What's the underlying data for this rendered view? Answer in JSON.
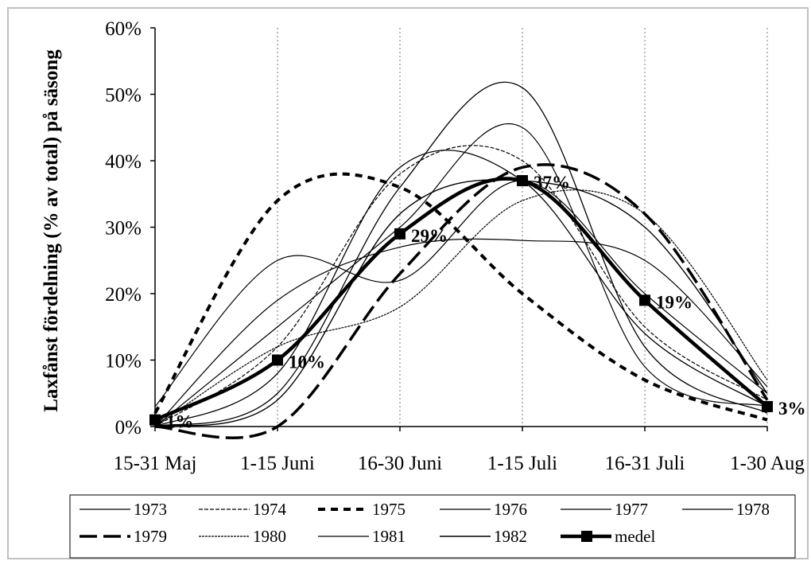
{
  "chart_data": {
    "type": "line",
    "title": "",
    "xlabel": "",
    "ylabel": "Laxfånst fördelning (% av total) på säsong",
    "categories": [
      "15-31 Maj",
      "1-15 Juni",
      "16-30 Juni",
      "1-15 Juli",
      "16-31 Juli",
      "1-30 Aug"
    ],
    "ylim": [
      0,
      60
    ],
    "yticks": [
      "0%",
      "10%",
      "20%",
      "30%",
      "40%",
      "50%",
      "60%"
    ],
    "grid": "vertical dotted",
    "legend": "bottom",
    "series": [
      {
        "name": "1973",
        "values": [
          3,
          25,
          22,
          37,
          20,
          5
        ]
      },
      {
        "name": "1974",
        "values": [
          0,
          12,
          38,
          40,
          15,
          4
        ]
      },
      {
        "name": "1975",
        "values": [
          2,
          34,
          36,
          20,
          7,
          1
        ]
      },
      {
        "name": "1976",
        "values": [
          0,
          5,
          36,
          51,
          12,
          2
        ]
      },
      {
        "name": "1977",
        "values": [
          0,
          15,
          30,
          45,
          9,
          3
        ]
      },
      {
        "name": "1978",
        "values": [
          0,
          19,
          27,
          28,
          25,
          6
        ]
      },
      {
        "name": "1979",
        "values": [
          0,
          0,
          23,
          39,
          32,
          4
        ]
      },
      {
        "name": "1980",
        "values": [
          0,
          12,
          18,
          34,
          32,
          7
        ]
      },
      {
        "name": "1981",
        "values": [
          0,
          8,
          39,
          37,
          14,
          3
        ]
      },
      {
        "name": "1982",
        "values": [
          0,
          4,
          32,
          37,
          30,
          5
        ]
      },
      {
        "name": "medel",
        "values": [
          1,
          10,
          29,
          37,
          19,
          3
        ]
      }
    ],
    "data_labels": [
      "1%",
      "10%",
      "29%",
      "37%",
      "19%",
      "3%"
    ]
  }
}
